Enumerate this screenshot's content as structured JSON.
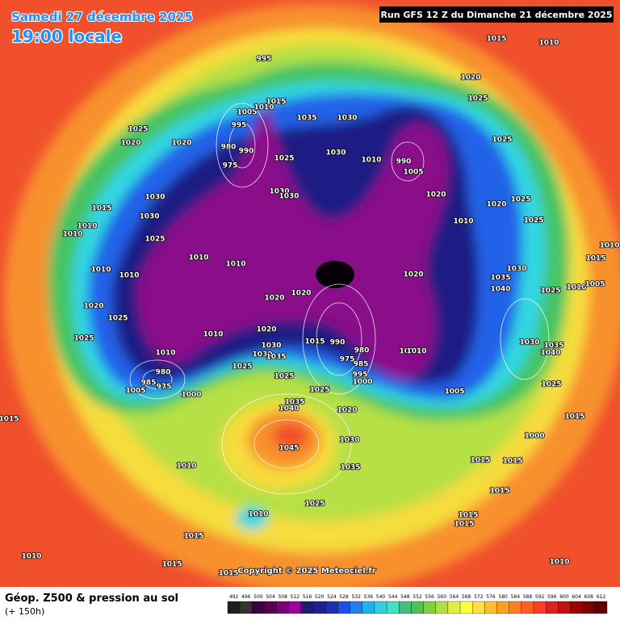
{
  "header": {
    "date": "Samedi 27 décembre 2025",
    "time": "19:00 locale",
    "run": "Run GFS 12 Z du Dimanche 21 décembre 2025"
  },
  "footer": {
    "title": "Géop. Z500 & pression au sol",
    "lead": "(+ 150h)",
    "copyright": "Copyright © 2025 Meteociel.fr"
  },
  "legend": {
    "ticks": [
      492,
      496,
      500,
      504,
      508,
      512,
      516,
      520,
      524,
      528,
      532,
      536,
      540,
      544,
      548,
      552,
      556,
      560,
      564,
      568,
      572,
      576,
      580,
      584,
      588,
      592,
      596,
      600,
      604,
      608,
      612
    ]
  },
  "isobar_labels": [
    995,
    1015,
    1010,
    1020,
    1015,
    1035,
    1030,
    1025,
    1025,
    1020,
    1020,
    1005,
    1010,
    995,
    980,
    990,
    975,
    1025,
    1030,
    1010,
    990,
    1005,
    1025,
    1030,
    1030,
    1030,
    1015,
    1020,
    1020,
    1025,
    1030,
    1010,
    1010,
    1010,
    1025,
    1025,
    1010,
    1010,
    1010,
    1015,
    1010,
    1010,
    1020,
    1030,
    1035,
    1040,
    1025,
    1010,
    1005,
    1020,
    1020,
    1020,
    1025,
    1010,
    1020,
    1025,
    1030,
    1015,
    990,
    1030,
    1035,
    1040,
    980,
    1010,
    1010,
    1010,
    1030,
    1035,
    975,
    985,
    1025,
    980,
    995,
    1025,
    1000,
    985,
    975,
    1005,
    1025,
    1000,
    1005,
    1025,
    1035,
    1040,
    1020,
    1015,
    1015,
    1000,
    1030,
    1045,
    1010,
    1035,
    1015,
    1015,
    1015,
    1025,
    1010,
    1015,
    1015,
    1015,
    1010,
    1015,
    1010,
    1015
  ]
}
